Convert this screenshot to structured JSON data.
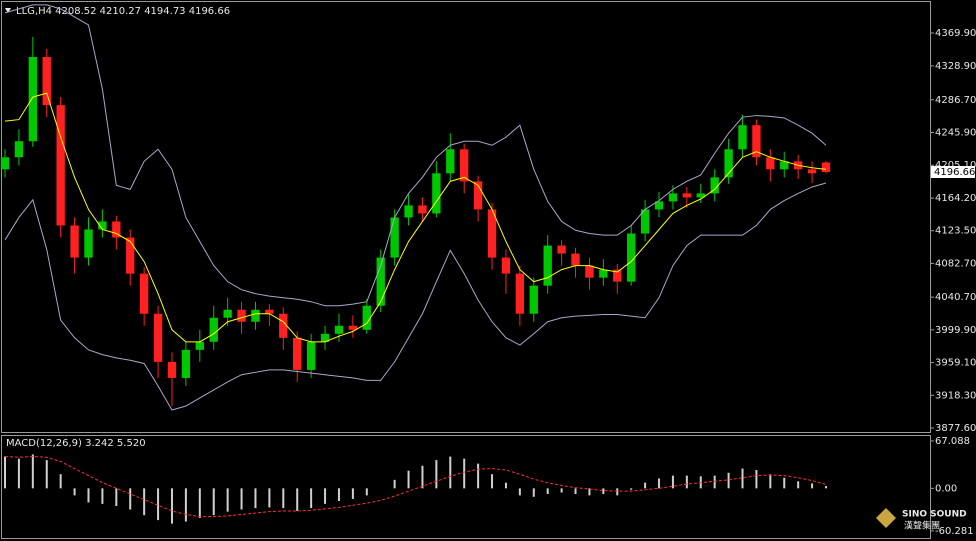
{
  "chart_data": {
    "type": "candlestick",
    "title": "LLG,H4  4208.52 4210.27 4194.73 4196.66",
    "up_color": "#00c800",
    "down_color": "#ff2020",
    "ylim": [
      3872.6,
      4407.3
    ],
    "yticks": [
      {
        "value": 4369.9,
        "label": "4369.90"
      },
      {
        "value": 4328.9,
        "label": "4328.90"
      },
      {
        "value": 4286.7,
        "label": "4286.70"
      },
      {
        "value": 4245.9,
        "label": "4245.90"
      },
      {
        "value": 4205.1,
        "label": "4205.10"
      },
      {
        "value": 4164.2,
        "label": "4164.20"
      },
      {
        "value": 4123.5,
        "label": "4123.50"
      },
      {
        "value": 4082.7,
        "label": "4082.70"
      },
      {
        "value": 4040.7,
        "label": "4040.70"
      },
      {
        "value": 3999.9,
        "label": "3999.90"
      },
      {
        "value": 3959.1,
        "label": "3959.10"
      },
      {
        "value": 3918.3,
        "label": "3918.30"
      },
      {
        "value": 3877.6,
        "label": "3877.60"
      }
    ],
    "current_price": 4196.66,
    "candles": [
      [
        4200,
        4225,
        4190,
        4215
      ],
      [
        4215,
        4250,
        4205,
        4235
      ],
      [
        4235,
        4365,
        4228,
        4340
      ],
      [
        4340,
        4350,
        4265,
        4280
      ],
      [
        4280,
        4290,
        4115,
        4130
      ],
      [
        4130,
        4140,
        4070,
        4090
      ],
      [
        4090,
        4140,
        4080,
        4125
      ],
      [
        4125,
        4150,
        4115,
        4135
      ],
      [
        4135,
        4142,
        4100,
        4115
      ],
      [
        4115,
        4125,
        4055,
        4070
      ],
      [
        4070,
        4078,
        4005,
        4020
      ],
      [
        4020,
        4030,
        3940,
        3960
      ],
      [
        3960,
        3972,
        3905,
        3940
      ],
      [
        3940,
        3985,
        3930,
        3975
      ],
      [
        3975,
        4000,
        3960,
        3985
      ],
      [
        3985,
        4030,
        3975,
        4015
      ],
      [
        4015,
        4040,
        4005,
        4025
      ],
      [
        4025,
        4035,
        3995,
        4010
      ],
      [
        4010,
        4035,
        4000,
        4025
      ],
      [
        4025,
        4032,
        4005,
        4020
      ],
      [
        4020,
        4028,
        3975,
        3990
      ],
      [
        3990,
        3998,
        3935,
        3950
      ],
      [
        3950,
        3995,
        3940,
        3985
      ],
      [
        3985,
        4005,
        3975,
        3995
      ],
      [
        3995,
        4020,
        3985,
        4005
      ],
      [
        4005,
        4018,
        3990,
        4000
      ],
      [
        4000,
        4038,
        3995,
        4030
      ],
      [
        4030,
        4100,
        4022,
        4090
      ],
      [
        4090,
        4150,
        4080,
        4140
      ],
      [
        4140,
        4170,
        4130,
        4155
      ],
      [
        4155,
        4165,
        4135,
        4145
      ],
      [
        4145,
        4210,
        4140,
        4195
      ],
      [
        4195,
        4245,
        4185,
        4225
      ],
      [
        4225,
        4232,
        4170,
        4185
      ],
      [
        4185,
        4192,
        4135,
        4150
      ],
      [
        4150,
        4158,
        4075,
        4090
      ],
      [
        4090,
        4100,
        4045,
        4070
      ],
      [
        4070,
        4080,
        4005,
        4020
      ],
      [
        4020,
        4065,
        4010,
        4055
      ],
      [
        4055,
        4118,
        4045,
        4105
      ],
      [
        4105,
        4112,
        4080,
        4095
      ],
      [
        4095,
        4102,
        4065,
        4080
      ],
      [
        4080,
        4090,
        4050,
        4065
      ],
      [
        4065,
        4088,
        4055,
        4075
      ],
      [
        4075,
        4082,
        4045,
        4060
      ],
      [
        4060,
        4130,
        4055,
        4120
      ],
      [
        4120,
        4162,
        4110,
        4150
      ],
      [
        4150,
        4172,
        4140,
        4160
      ],
      [
        4160,
        4180,
        4150,
        4170
      ],
      [
        4170,
        4178,
        4152,
        4165
      ],
      [
        4165,
        4182,
        4158,
        4170
      ],
      [
        4170,
        4200,
        4160,
        4190
      ],
      [
        4190,
        4238,
        4182,
        4225
      ],
      [
        4225,
        4268,
        4215,
        4255
      ],
      [
        4255,
        4262,
        4205,
        4215
      ],
      [
        4215,
        4225,
        4185,
        4200
      ],
      [
        4200,
        4222,
        4190,
        4210
      ],
      [
        4210,
        4218,
        4188,
        4200
      ],
      [
        4200,
        4210,
        4183,
        4195
      ],
      [
        4208.52,
        4210.27,
        4194.73,
        4196.66
      ]
    ],
    "series": [
      {
        "color": "#a8a8c8",
        "values": [
          4395,
          4400,
          4405,
          4405,
          4400,
          4390,
          4380,
          4300,
          4180,
          4175,
          4210,
          4225,
          4200,
          4140,
          4110,
          4080,
          4060,
          4050,
          4045,
          4042,
          4040,
          4038,
          4035,
          4030,
          4030,
          4032,
          4035,
          4080,
          4140,
          4170,
          4190,
          4215,
          4230,
          4235,
          4235,
          4230,
          4240,
          4255,
          4200,
          4160,
          4135,
          4124,
          4120,
          4118,
          4118,
          4130,
          4150,
          4161,
          4175,
          4185,
          4193,
          4220,
          4245,
          4265,
          4267,
          4266,
          4264,
          4255,
          4245,
          4230
        ]
      },
      {
        "color": "#a8a8c8",
        "values": [
          4112,
          4140,
          4162,
          4100,
          4012,
          3990,
          3975,
          3969,
          3965,
          3962,
          3958,
          3930,
          3900,
          3905,
          3915,
          3925,
          3935,
          3944,
          3947,
          3950,
          3950,
          3948,
          3946,
          3944,
          3942,
          3940,
          3937,
          3937,
          3960,
          3990,
          4020,
          4060,
          4099,
          4070,
          4037,
          4010,
          3990,
          3981,
          3995,
          4010,
          4015,
          4017,
          4018,
          4019,
          4019,
          4017,
          4015,
          4040,
          4080,
          4105,
          4118,
          4118,
          4118,
          4118,
          4130,
          4150,
          4161,
          4170,
          4178,
          4183
        ]
      },
      {
        "color": "#ffff00",
        "values": [
          4260,
          4262,
          4290,
          4295,
          4240,
          4190,
          4150,
          4125,
          4120,
          4110,
          4085,
          4045,
          4000,
          3985,
          3985,
          3995,
          4010,
          4015,
          4020,
          4020,
          4010,
          3990,
          3985,
          3985,
          3992,
          3998,
          4008,
          4035,
          4075,
          4110,
          4135,
          4160,
          4185,
          4190,
          4180,
          4150,
          4110,
          4075,
          4060,
          4065,
          4075,
          4080,
          4080,
          4075,
          4072,
          4085,
          4105,
          4125,
          4145,
          4155,
          4163,
          4175,
          4195,
          4215,
          4222,
          4215,
          4210,
          4205,
          4202,
          4200
        ]
      }
    ],
    "macd": {
      "title": "MACD(12,26,9) 3.242 5.520",
      "ylim": [
        -68.9,
        74.1
      ],
      "yticks": [
        67.088,
        {
          "value": 0,
          "label": "0.00"
        },
        -60.281
      ],
      "hist_color": "#d0d0d0",
      "signal_color": "#ff3030",
      "histogram": [
        45,
        42,
        48,
        40,
        20,
        -10,
        -20,
        -22,
        -25,
        -30,
        -38,
        -45,
        -50,
        -47,
        -42,
        -38,
        -33,
        -30,
        -28,
        -27,
        -28,
        -32,
        -28,
        -22,
        -18,
        -15,
        -10,
        0,
        12,
        25,
        32,
        40,
        45,
        42,
        35,
        20,
        8,
        -10,
        -12,
        -8,
        -6,
        -8,
        -10,
        -8,
        -10,
        -2,
        8,
        14,
        18,
        18,
        17,
        18,
        22,
        28,
        26,
        20,
        15,
        10,
        7,
        3.242
      ],
      "signal": [
        45,
        44,
        45,
        44,
        38,
        28,
        18,
        8,
        0,
        -8,
        -16,
        -24,
        -32,
        -37,
        -40,
        -40,
        -39,
        -37,
        -35,
        -33,
        -32,
        -32,
        -31,
        -29,
        -27,
        -24,
        -21,
        -17,
        -11,
        -4,
        3,
        10,
        17,
        23,
        27,
        28,
        26,
        20,
        13,
        8,
        4,
        1,
        -1,
        -3,
        -4,
        -4,
        -2,
        0,
        3,
        6,
        8,
        10,
        12,
        15,
        18,
        19,
        18,
        15,
        11,
        5.52
      ]
    }
  },
  "logo": {
    "name": "SINO SOUND",
    "subtitle": "漢聲集團"
  }
}
